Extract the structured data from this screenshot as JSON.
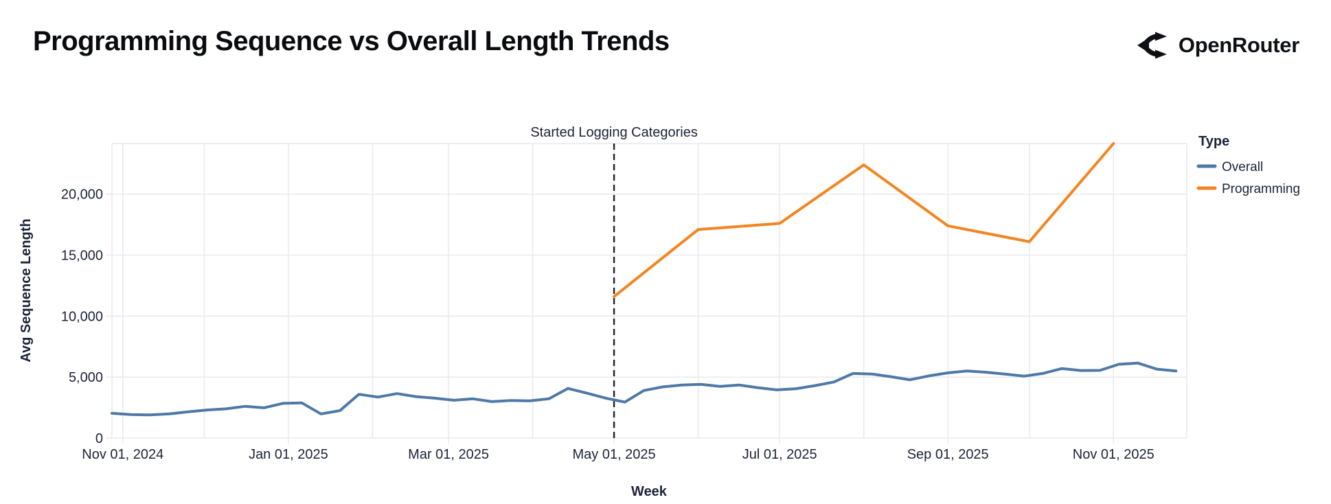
{
  "header": {
    "title": "Programming Sequence vs Overall Length Trends",
    "brand": "OpenRouter"
  },
  "chart_data": {
    "type": "line",
    "title": "Programming Sequence vs Overall Length Trends",
    "xlabel": "Week",
    "ylabel": "Avg Sequence Length",
    "legend_title": "Type",
    "legend_position": "right",
    "grid": true,
    "annotation": {
      "label": "Started Logging Categories",
      "date": "2025-05-01"
    },
    "x_domain": [
      "2024-10-28",
      "2025-11-28"
    ],
    "ylim": [
      0,
      24150
    ],
    "y_ticks": [
      0,
      5000,
      10000,
      15000,
      20000
    ],
    "x_ticks": [
      {
        "date": "2024-11-01",
        "label": "Nov 01, 2024"
      },
      {
        "date": "2025-01-01",
        "label": "Jan 01, 2025"
      },
      {
        "date": "2025-03-01",
        "label": "Mar 01, 2025"
      },
      {
        "date": "2025-05-01",
        "label": "May 01, 2025"
      },
      {
        "date": "2025-07-01",
        "label": "Jul 01, 2025"
      },
      {
        "date": "2025-09-01",
        "label": "Sep 01, 2025"
      },
      {
        "date": "2025-11-01",
        "label": "Nov 01, 2025"
      }
    ],
    "x_gridline_dates": [
      "2024-11-01",
      "2024-12-01",
      "2025-01-01",
      "2025-02-01",
      "2025-03-01",
      "2025-04-01",
      "2025-05-01",
      "2025-06-01",
      "2025-07-01",
      "2025-08-01",
      "2025-09-01",
      "2025-10-01",
      "2025-11-01"
    ],
    "series": [
      {
        "name": "Overall",
        "color": "#4e79a7",
        "dates": [
          "2024-10-28",
          "2024-11-04",
          "2024-11-11",
          "2024-11-18",
          "2024-11-25",
          "2024-12-02",
          "2024-12-09",
          "2024-12-16",
          "2024-12-23",
          "2024-12-30",
          "2025-01-06",
          "2025-01-13",
          "2025-01-20",
          "2025-01-27",
          "2025-02-03",
          "2025-02-10",
          "2025-02-17",
          "2025-02-24",
          "2025-03-03",
          "2025-03-10",
          "2025-03-17",
          "2025-03-24",
          "2025-03-31",
          "2025-04-07",
          "2025-04-14",
          "2025-04-21",
          "2025-04-28",
          "2025-05-05",
          "2025-05-12",
          "2025-05-19",
          "2025-05-26",
          "2025-06-02",
          "2025-06-09",
          "2025-06-16",
          "2025-06-23",
          "2025-06-30",
          "2025-07-07",
          "2025-07-14",
          "2025-07-21",
          "2025-07-28",
          "2025-08-04",
          "2025-08-11",
          "2025-08-18",
          "2025-08-25",
          "2025-09-01",
          "2025-09-08",
          "2025-09-15",
          "2025-09-22",
          "2025-09-29",
          "2025-10-06",
          "2025-10-13",
          "2025-10-20",
          "2025-10-27",
          "2025-11-03",
          "2025-11-10",
          "2025-11-17",
          "2025-11-24"
        ],
        "values": [
          2030,
          1930,
          1900,
          1980,
          2150,
          2300,
          2400,
          2600,
          2480,
          2850,
          2880,
          1980,
          2250,
          3590,
          3360,
          3650,
          3400,
          3270,
          3100,
          3220,
          2990,
          3080,
          3050,
          3220,
          4070,
          3680,
          3270,
          2950,
          3900,
          4200,
          4350,
          4400,
          4240,
          4350,
          4130,
          3950,
          4050,
          4300,
          4600,
          5300,
          5250,
          5030,
          4780,
          5100,
          5350,
          5500,
          5400,
          5250,
          5080,
          5300,
          5700,
          5540,
          5550,
          6050,
          6150,
          5650,
          5500
        ]
      },
      {
        "name": "Programming",
        "color": "#f28522",
        "dates": [
          "2025-05-01",
          "2025-06-01",
          "2025-07-01",
          "2025-08-01",
          "2025-09-01",
          "2025-10-01",
          "2025-11-01"
        ],
        "values": [
          11600,
          17100,
          17600,
          22400,
          17400,
          16100,
          24150
        ]
      }
    ]
  }
}
